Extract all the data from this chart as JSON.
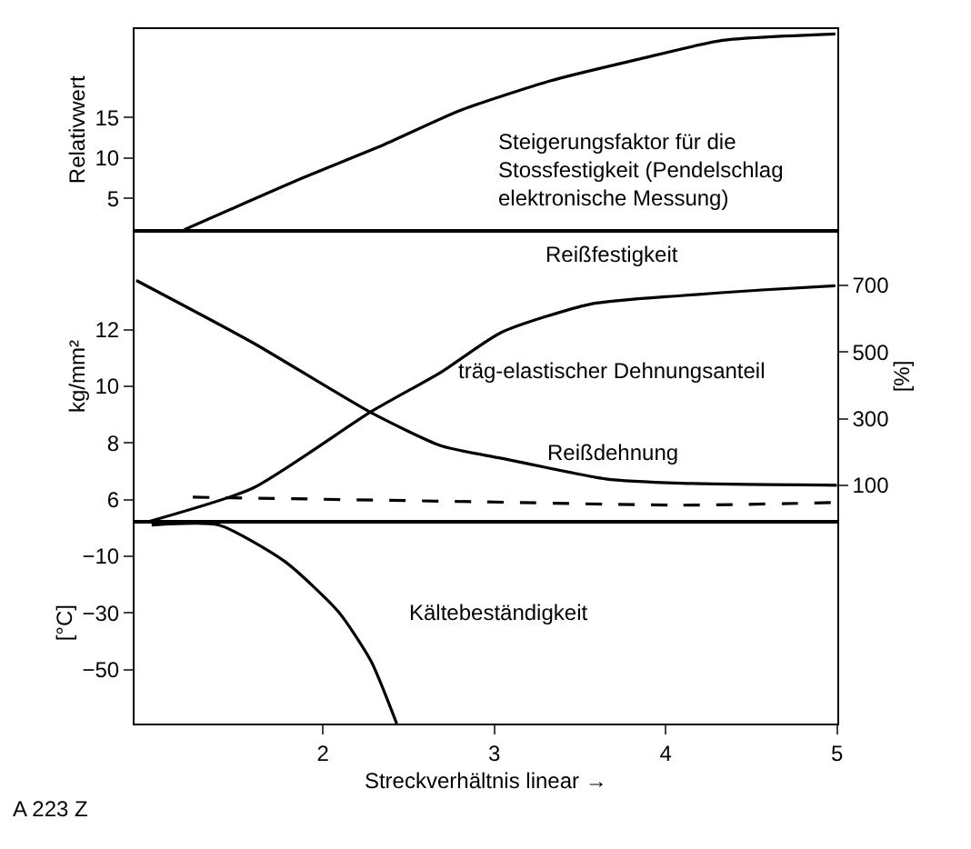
{
  "chart_data": [
    {
      "type": "line",
      "ylabel": "Relativwert",
      "xlim": [
        0.9,
        5.0
      ],
      "ylim": [
        1,
        26
      ],
      "yticks": [
        5,
        10,
        15
      ],
      "tick_labels": "y",
      "grid": false,
      "annotations": [
        "Steigerungsfaktor für die\nStossfestigkeit (Pendelschlag\nelektronische Messung)"
      ],
      "series": [
        {
          "color": "#000000",
          "line_style": "solid",
          "x": [
            1.19,
            1.89,
            2.36,
            2.8,
            3.33,
            3.83,
            4.33,
            4.99
          ],
          "values": [
            1.1,
            7.6,
            11.7,
            15.9,
            19.6,
            22.2,
            24.6,
            25.4
          ]
        }
      ]
    },
    {
      "type": "line",
      "ylabel": "kg/mm²",
      "y2label": "[%]",
      "xlim": [
        0.9,
        5.0
      ],
      "ylim": [
        5.2,
        15.5
      ],
      "yticks": [
        6,
        8,
        10,
        12
      ],
      "y2lim": [
        -11,
        865
      ],
      "y2ticks": [
        100,
        300,
        500,
        700
      ],
      "tick_labels": "y",
      "grid": false,
      "annotations": [
        "Reißfestigkeit",
        "träg-elastischer Dehnungsanteil",
        "Reißdehnung"
      ],
      "series": [
        {
          "color": "#000000",
          "line_style": "solid",
          "x": [
            0.97,
            1.59,
            2.28,
            2.69,
            3.04,
            3.56,
            4.09,
            4.56,
            4.99
          ],
          "values": [
            5.2,
            6.4,
            9.1,
            10.5,
            11.9,
            12.9,
            13.2,
            13.4,
            13.55
          ]
        },
        {
          "color": "#000000",
          "line_style": "solid",
          "axis": "y2",
          "x": [
            0.91,
            1.59,
            2.28,
            2.69,
            3.04,
            3.65,
            4.09,
            5.0
          ],
          "values": [
            715,
            528,
            318,
            218,
            181,
            119,
            106,
            100
          ]
        },
        {
          "color": "#000000",
          "line_style": "dashed",
          "axis": "y2",
          "x": [
            1.24,
            2.94,
            4.09,
            5.0
          ],
          "values": [
            64,
            50,
            40,
            48
          ]
        }
      ]
    },
    {
      "type": "line",
      "ylabel": "[°C]",
      "xlabel": "Streckverhältnis linear →",
      "xlim": [
        0.9,
        5.0
      ],
      "xticks": [
        2,
        3,
        4,
        5
      ],
      "ylim": [
        -69,
        2
      ],
      "yticks": [
        -10,
        -30,
        -50
      ],
      "grid": false,
      "annotations": [
        "Kältebeständigkeit",
        "A 223 Z"
      ],
      "series": [
        {
          "color": "#000000",
          "line_style": "solid",
          "x": [
            1.0,
            1.39,
            1.78,
            2.09,
            2.28,
            2.43
          ],
          "values": [
            1,
            1,
            -12,
            -29.6,
            -47,
            -69
          ]
        }
      ]
    }
  ]
}
